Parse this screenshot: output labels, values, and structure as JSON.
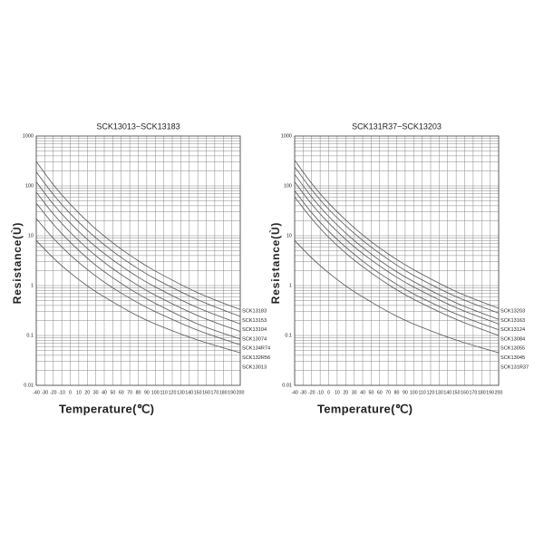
{
  "chart_data": [
    {
      "type": "line",
      "title": "SCK13013~SCK13183",
      "xlabel": "Temperature(℃)",
      "ylabel": "Resistance(Ù)",
      "x": [
        -40,
        -20,
        0,
        25,
        50,
        75,
        100,
        150,
        200
      ],
      "xlim": [
        -40,
        200
      ],
      "xticks": [
        -40,
        -30,
        -20,
        -10,
        0,
        10,
        20,
        30,
        40,
        50,
        60,
        70,
        80,
        90,
        100,
        110,
        120,
        130,
        140,
        150,
        160,
        170,
        180,
        190,
        200
      ],
      "ylim": [
        0.01,
        1000
      ],
      "yticks": [
        0.01,
        0.1,
        1,
        10,
        100,
        1000
      ],
      "yminor": [
        0.02,
        0.03,
        0.04,
        0.05,
        0.06,
        0.07,
        0.08,
        0.09,
        0.2,
        0.3,
        0.4,
        0.5,
        0.6,
        0.7,
        0.8,
        0.9,
        2,
        3,
        4,
        5,
        6,
        7,
        8,
        9,
        20,
        30,
        40,
        50,
        60,
        70,
        80,
        90,
        200,
        300,
        400,
        500,
        600,
        700,
        800,
        900
      ],
      "log_y": true,
      "grid": true,
      "series": [
        {
          "name": "SCK13183",
          "color": "#555555",
          "values": [
            308,
            106,
            42.7,
            16.3,
            7.2,
            3.59,
            1.96,
            0.72,
            0.33
          ]
        },
        {
          "name": "SCK13153",
          "color": "#555555",
          "values": [
            190,
            67.3,
            27.7,
            10.8,
            4.87,
            2.46,
            1.37,
            0.52,
            0.24
          ]
        },
        {
          "name": "SCK13104",
          "color": "#555555",
          "values": [
            120,
            43,
            18,
            7.1,
            3.27,
            1.67,
            0.94,
            0.36,
            0.17
          ]
        },
        {
          "name": "SCK13074",
          "color": "#555555",
          "values": [
            75,
            27.5,
            11.7,
            4.7,
            2.18,
            1.13,
            0.64,
            0.25,
            0.12
          ]
        },
        {
          "name": "SCK134R74",
          "color": "#555555",
          "values": [
            45,
            17,
            7.4,
            3.0,
            1.44,
            0.76,
            0.44,
            0.17,
            0.085
          ]
        },
        {
          "name": "SCK132R56",
          "color": "#555555",
          "values": [
            22,
            8.9,
            4.1,
            1.8,
            0.9,
            0.5,
            0.3,
            0.127,
            0.065
          ]
        },
        {
          "name": "SCK13013",
          "color": "#555555",
          "values": [
            8,
            3.6,
            1.8,
            0.86,
            0.47,
            0.27,
            0.17,
            0.081,
            0.045
          ]
        }
      ]
    },
    {
      "type": "line",
      "title": "SCK131R37~SCK13203",
      "xlabel": "Temperature(℃)",
      "ylabel": "Resistance(Ù)",
      "x": [
        -40,
        -20,
        0,
        25,
        50,
        75,
        100,
        150,
        200
      ],
      "xlim": [
        -40,
        200
      ],
      "xticks": [
        -40,
        -30,
        -20,
        -10,
        0,
        10,
        20,
        30,
        40,
        50,
        60,
        70,
        80,
        90,
        100,
        110,
        120,
        130,
        140,
        150,
        160,
        170,
        180,
        190,
        200
      ],
      "ylim": [
        0.01,
        1000
      ],
      "yticks": [
        0.01,
        0.1,
        1,
        10,
        100,
        1000
      ],
      "yminor": [
        0.02,
        0.03,
        0.04,
        0.05,
        0.06,
        0.07,
        0.08,
        0.09,
        0.2,
        0.3,
        0.4,
        0.5,
        0.6,
        0.7,
        0.8,
        0.9,
        2,
        3,
        4,
        5,
        6,
        7,
        8,
        9,
        20,
        30,
        40,
        50,
        60,
        70,
        80,
        90,
        200,
        300,
        400,
        500,
        600,
        700,
        800,
        900
      ],
      "log_y": true,
      "grid": true,
      "series": [
        {
          "name": "SCK13203",
          "color": "#555555",
          "values": [
            327,
            112,
            45,
            17.3,
            7.6,
            3.8,
            2.08,
            0.76,
            0.35
          ]
        },
        {
          "name": "SCK13163",
          "color": "#555555",
          "values": [
            240,
            84,
            34,
            13.3,
            5.9,
            2.95,
            1.6,
            0.6,
            0.28
          ]
        },
        {
          "name": "SCK13124",
          "color": "#555555",
          "values": [
            170,
            60,
            24.5,
            9.5,
            4.3,
            2.15,
            1.2,
            0.45,
            0.21
          ]
        },
        {
          "name": "SCK13084",
          "color": "#555555",
          "values": [
            120,
            43,
            18,
            7.1,
            3.27,
            1.67,
            0.94,
            0.36,
            0.17
          ]
        },
        {
          "name": "SCK13055",
          "color": "#555555",
          "values": [
            80,
            29,
            12.3,
            5,
            2.3,
            1.2,
            0.68,
            0.27,
            0.13
          ]
        },
        {
          "name": "SCK13045",
          "color": "#555555",
          "values": [
            60,
            22,
            9.3,
            3.8,
            1.8,
            0.93,
            0.53,
            0.21,
            0.1
          ]
        },
        {
          "name": "SCK131R37",
          "color": "#555555",
          "values": [
            8,
            3.6,
            1.8,
            0.86,
            0.47,
            0.27,
            0.17,
            0.081,
            0.045
          ]
        }
      ]
    }
  ]
}
